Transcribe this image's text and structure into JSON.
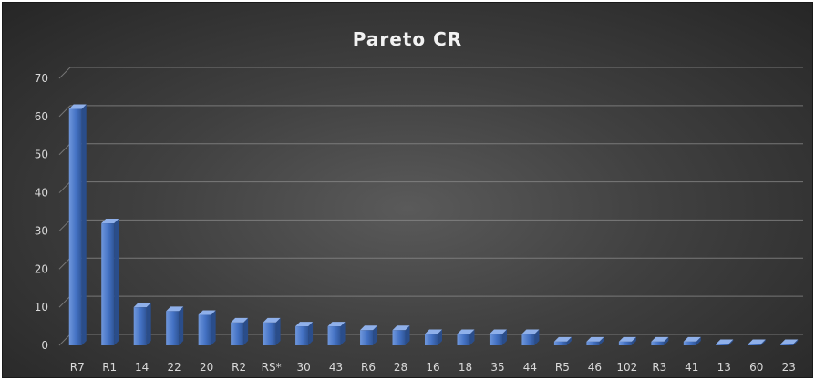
{
  "chart_data": {
    "type": "bar",
    "title": "Pareto CR",
    "xlabel": "",
    "ylabel": "",
    "ylim": [
      0,
      70
    ],
    "yticks": [
      0,
      10,
      20,
      30,
      40,
      50,
      60,
      70
    ],
    "grid": true,
    "legend": "none",
    "bar_color": "#4472c4",
    "categories": [
      "R7",
      "R1",
      "14",
      "22",
      "20",
      "R2",
      "RS*",
      "30",
      "43",
      "R6",
      "28",
      "16",
      "18",
      "35",
      "44",
      "R5",
      "46",
      "102",
      "R3",
      "41",
      "13",
      "60",
      "23"
    ],
    "values": [
      62,
      32,
      10,
      9,
      8,
      6,
      6,
      5,
      5,
      4,
      4,
      3,
      3,
      3,
      3,
      1,
      1,
      1,
      1,
      1,
      0,
      0,
      0
    ]
  }
}
